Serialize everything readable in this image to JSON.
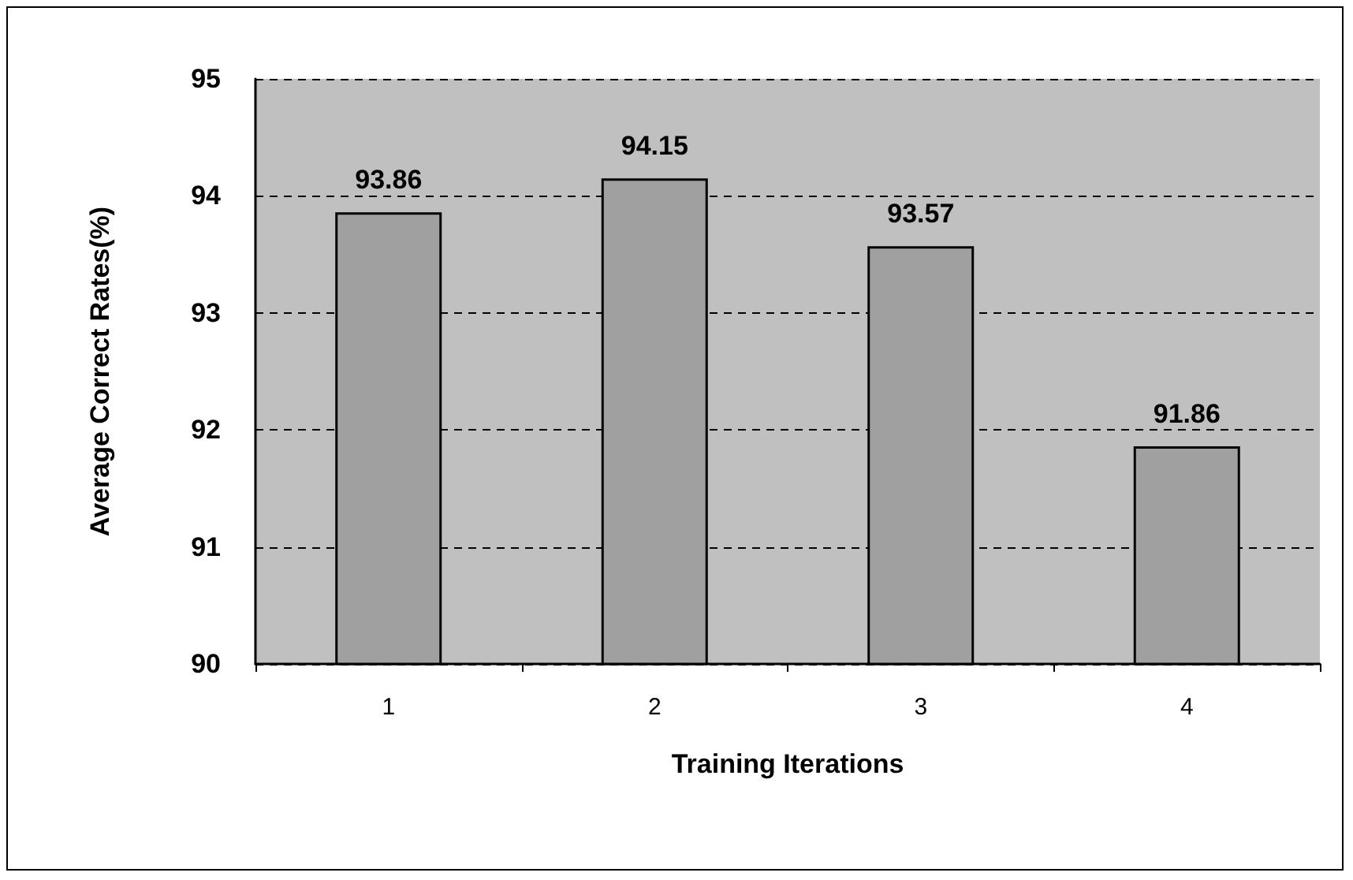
{
  "chart_data": {
    "type": "bar",
    "xlabel": "Training Iterations",
    "ylabel": "Average Correct Rates(%)",
    "categories": [
      "1",
      "2",
      "3",
      "4"
    ],
    "values": [
      93.86,
      94.15,
      93.57,
      91.86
    ],
    "color": "#a0a0a0",
    "ylim": [
      90,
      95
    ],
    "yticks": [
      90,
      91,
      92,
      93,
      94,
      95
    ],
    "grid": "y",
    "data_labels": true
  }
}
